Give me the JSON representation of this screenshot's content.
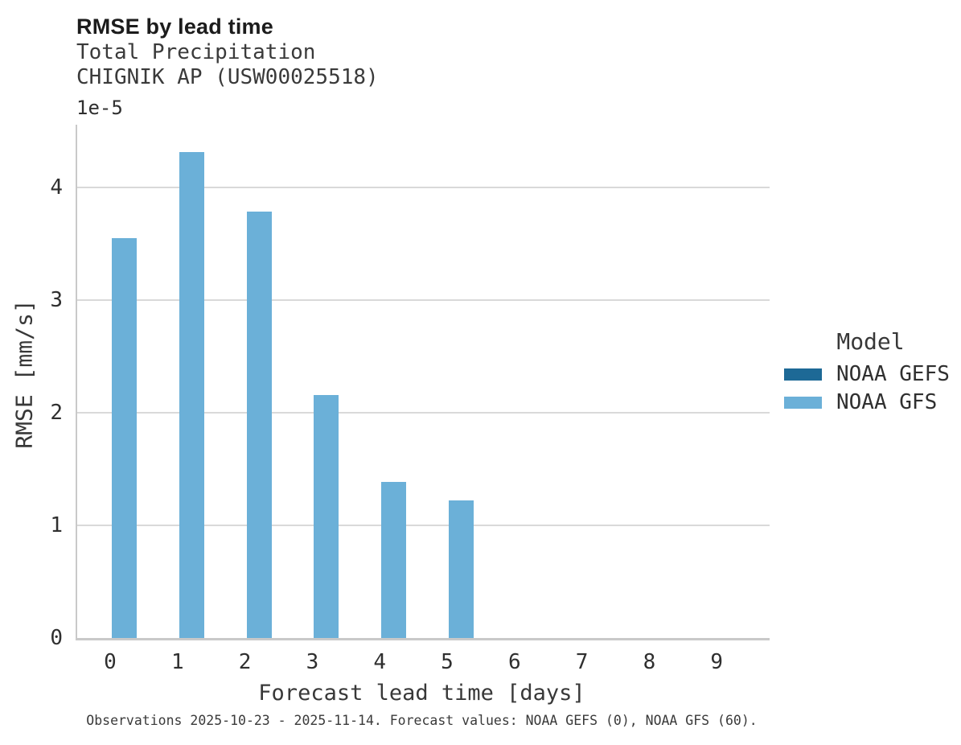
{
  "header": {
    "title": "RMSE by lead time",
    "subtitle_line1": "Total Precipitation",
    "subtitle_line2": "CHIGNIK AP (USW00025518)"
  },
  "axes": {
    "y_offset_label": "1e-5",
    "y_label": "RMSE [mm/s]",
    "x_label": "Forecast lead time [days]"
  },
  "legend": {
    "title": "Model",
    "items": [
      {
        "label": "NOAA GEFS",
        "color": "#1d6996"
      },
      {
        "label": "NOAA GFS",
        "color": "#6bb0d8"
      }
    ]
  },
  "footer": {
    "caption": "Observations 2025-10-23 - 2025-11-14. Forecast values: NOAA GEFS (0), NOAA GFS (60)."
  },
  "colors": {
    "gridline": "#d9d9d9",
    "axis_spine": "#c9c9c9",
    "title_text": "#1c1c1c",
    "body_text": "#383838",
    "gefs_bar": "#1d6996",
    "gfs_bar": "#6bb0d8"
  },
  "chart_data": {
    "type": "bar",
    "title": "RMSE by lead time",
    "subtitle": [
      "Total Precipitation",
      "CHIGNIK AP (USW00025518)"
    ],
    "xlabel": "Forecast lead time [days]",
    "ylabel": "RMSE [mm/s]",
    "y_units_scale": "1e-5",
    "categories": [
      0,
      1,
      2,
      3,
      4,
      5,
      6,
      7,
      8,
      9
    ],
    "series": [
      {
        "name": "NOAA GEFS",
        "color": "#1d6996",
        "values": [
          null,
          null,
          null,
          null,
          null,
          null,
          null,
          null,
          null,
          null
        ]
      },
      {
        "name": "NOAA GFS",
        "color": "#6bb0d8",
        "values": [
          3.55,
          4.32,
          3.79,
          2.16,
          1.39,
          1.22,
          null,
          null,
          null,
          null
        ]
      }
    ],
    "yticks": [
      0,
      1,
      2,
      3,
      4
    ],
    "ylim": [
      0,
      4.56
    ],
    "grid": true,
    "legend_title": "Model",
    "legend_position": "right"
  }
}
